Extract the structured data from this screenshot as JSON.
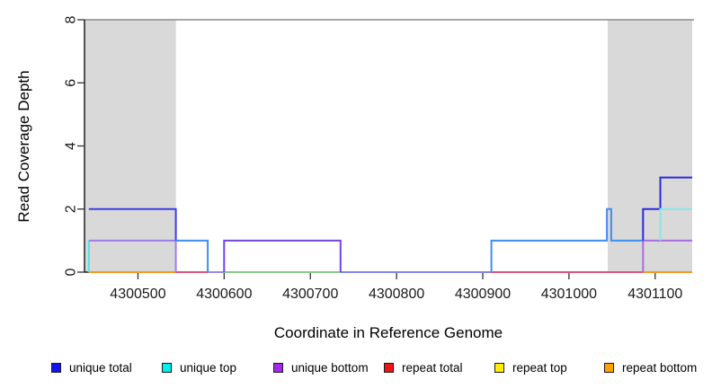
{
  "chart_data": {
    "type": "line",
    "subtype": "step",
    "title": "",
    "xlabel": "Coordinate in Reference Genome",
    "ylabel": "Read Coverage Depth",
    "xlim": [
      4300438,
      4301143
    ],
    "ylim": [
      0,
      8
    ],
    "xticks": [
      4300500,
      4300600,
      4300700,
      4300800,
      4300900,
      4301000,
      4301100
    ],
    "yticks": [
      0,
      2,
      4,
      6,
      8
    ],
    "grid": false,
    "legend_position": "bottom",
    "shaded_regions": [
      {
        "x1": 4300438,
        "x2": 4300544,
        "color": "#d9d9d9"
      },
      {
        "x1": 4301045,
        "x2": 4301143,
        "color": "#d9d9d9"
      }
    ],
    "cap_line": {
      "y": 8,
      "color": "#8a8a8a"
    },
    "series": [
      {
        "name": "unique total",
        "color": "#0000ff",
        "step_points": [
          [
            4300443,
            2
          ],
          [
            4300544,
            1
          ],
          [
            4300581,
            0
          ],
          [
            4300600,
            1
          ],
          [
            4300735,
            0
          ],
          [
            4300910,
            1
          ],
          [
            4301044,
            2
          ],
          [
            4301049,
            1
          ],
          [
            4301086,
            2
          ],
          [
            4301106,
            3
          ],
          [
            4301143,
            3
          ]
        ]
      },
      {
        "name": "unique top",
        "color": "#00ffff",
        "step_points": [
          [
            4300443,
            1
          ],
          [
            4300581,
            0
          ],
          [
            4300910,
            1
          ],
          [
            4301044,
            2
          ],
          [
            4301049,
            1
          ],
          [
            4301106,
            2
          ],
          [
            4301143,
            2
          ]
        ]
      },
      {
        "name": "unique bottom",
        "color": "#a020f0",
        "step_points": [
          [
            4300443,
            1
          ],
          [
            4300544,
            0
          ],
          [
            4300600,
            1
          ],
          [
            4300735,
            0
          ],
          [
            4301086,
            1
          ],
          [
            4301143,
            1
          ]
        ]
      },
      {
        "name": "repeat total",
        "color": "#ee0000",
        "step_points": [
          [
            4300443,
            0
          ],
          [
            4301143,
            0
          ]
        ]
      },
      {
        "name": "repeat top",
        "color": "#ffff00",
        "step_points": [
          [
            4300443,
            0
          ],
          [
            4301143,
            0
          ]
        ]
      },
      {
        "name": "repeat bottom",
        "color": "#ff9900",
        "step_points": [
          [
            4300443,
            0
          ],
          [
            4301143,
            0
          ]
        ]
      }
    ],
    "render_segments": [
      {
        "name": "zero-repeat-bottom-left",
        "color": "#f5991f",
        "points": [
          [
            4300443,
            0
          ],
          [
            4300544,
            0
          ]
        ]
      },
      {
        "name": "zero-crimson-a",
        "color": "#dd5577",
        "points": [
          [
            4300544,
            0
          ],
          [
            4300581,
            0
          ]
        ]
      },
      {
        "name": "zero-periwinkle-a",
        "color": "#9a8ae8",
        "points": [
          [
            4300581,
            0
          ],
          [
            4300600,
            0
          ]
        ]
      },
      {
        "name": "zero-green",
        "color": "#8cc88c",
        "points": [
          [
            4300600,
            0
          ],
          [
            4300735,
            0
          ]
        ]
      },
      {
        "name": "zero-periwinkle-b",
        "color": "#8585e8",
        "points": [
          [
            4300735,
            0
          ],
          [
            4300910,
            0
          ]
        ]
      },
      {
        "name": "zero-crimson-b",
        "color": "#dd5577",
        "points": [
          [
            4300910,
            0
          ],
          [
            4301086,
            0
          ]
        ]
      },
      {
        "name": "zero-repeat-bottom-right",
        "color": "#f5991f",
        "points": [
          [
            4301086,
            0
          ],
          [
            4301143,
            0
          ]
        ]
      },
      {
        "name": "unique-top-start",
        "color": "#5ae0e0",
        "points": [
          [
            4300443,
            0
          ],
          [
            4300443,
            1
          ]
        ]
      },
      {
        "name": "unique-bottom-gray1",
        "color": "#9d7ce8",
        "points": [
          [
            4300443,
            1
          ],
          [
            4300544,
            1
          ],
          [
            4300544,
            0
          ]
        ]
      },
      {
        "name": "unique-total-gray1",
        "color": "#3c3ce8",
        "points": [
          [
            4300443,
            2
          ],
          [
            4300544,
            2
          ],
          [
            4300544,
            1
          ]
        ]
      },
      {
        "name": "unique-top-total-azure-a",
        "color": "#3d8ef2",
        "points": [
          [
            4300544,
            1
          ],
          [
            4300581,
            1
          ],
          [
            4300581,
            0
          ]
        ]
      },
      {
        "name": "unique-bottom-total-mid",
        "color": "#7245e6",
        "points": [
          [
            4300600,
            0
          ],
          [
            4300600,
            1
          ],
          [
            4300735,
            1
          ],
          [
            4300735,
            0
          ]
        ]
      },
      {
        "name": "unique-top-total-azure-b",
        "color": "#3d8ef2",
        "points": [
          [
            4300910,
            0
          ],
          [
            4300910,
            1
          ],
          [
            4301044,
            1
          ],
          [
            4301044,
            2
          ],
          [
            4301049,
            2
          ],
          [
            4301049,
            1
          ],
          [
            4301086,
            1
          ]
        ]
      },
      {
        "name": "unique-bottom-right",
        "color": "#a96ce2",
        "points": [
          [
            4301086,
            0
          ],
          [
            4301086,
            1
          ],
          [
            4301143,
            1
          ]
        ]
      },
      {
        "name": "unique-total-right",
        "color": "#2a2ae0",
        "points": [
          [
            4301086,
            1
          ],
          [
            4301086,
            2
          ],
          [
            4301106,
            2
          ],
          [
            4301106,
            3
          ],
          [
            4301143,
            3
          ]
        ]
      },
      {
        "name": "unique-top-right",
        "color": "#86e8e4",
        "points": [
          [
            4301106,
            1
          ],
          [
            4301106,
            2
          ],
          [
            4301143,
            2
          ]
        ]
      }
    ]
  },
  "legend": {
    "items": [
      {
        "label": "unique total",
        "color": "#1414f0"
      },
      {
        "label": "unique top",
        "color": "#00f0f0"
      },
      {
        "label": "unique bottom",
        "color": "#a428f0"
      },
      {
        "label": "repeat total",
        "color": "#f01414"
      },
      {
        "label": "repeat top",
        "color": "#fff000"
      },
      {
        "label": "repeat bottom",
        "color": "#ffa000"
      }
    ]
  }
}
